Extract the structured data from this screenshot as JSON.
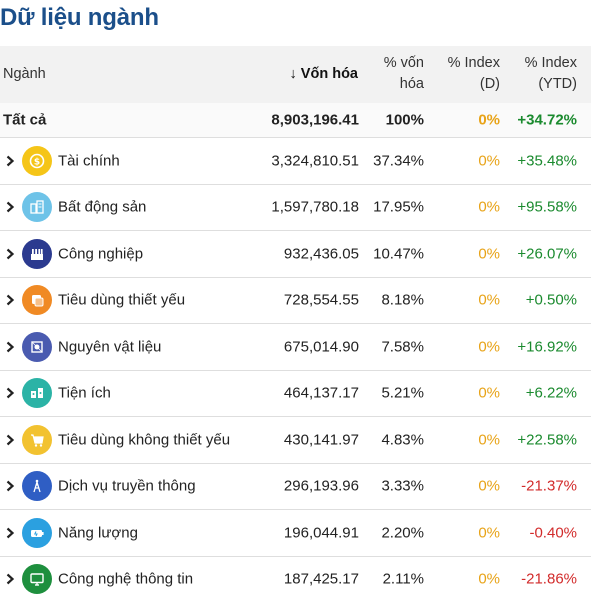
{
  "title": "Dữ liệu ngành",
  "colors": {
    "title": "#1b4f8a",
    "positive": "#1a8a2e",
    "negative": "#d22b2b",
    "neutral": "#e8a317",
    "header_bg": "#f2f2f2"
  },
  "columns": {
    "sector": "Ngành",
    "market_cap": "↓ Vốn hóa",
    "pct_cap": [
      "% vốn",
      "hóa"
    ],
    "pct_index_d": [
      "% Index",
      "(D)"
    ],
    "pct_index_ytd": [
      "% Index",
      "(YTD)"
    ]
  },
  "total": {
    "name": "Tất cả",
    "market_cap": "8,903,196.41",
    "pct_cap": "100%",
    "pct_index_d": "0%",
    "pct_index_ytd": "+34.72%"
  },
  "rows": [
    {
      "name": "Tài chính",
      "icon": "coin-icon",
      "icon_color": "#f5c518",
      "market_cap": "3,324,810.51",
      "pct_cap": "37.34%",
      "pct_index_d": "0%",
      "pct_index_ytd": "+35.48%",
      "trend": "pos"
    },
    {
      "name": "Bất động sản",
      "icon": "buildings-icon",
      "icon_color": "#6ec3e8",
      "market_cap": "1,597,780.18",
      "pct_cap": "17.95%",
      "pct_index_d": "0%",
      "pct_index_ytd": "+95.58%",
      "trend": "pos"
    },
    {
      "name": "Công nghiệp",
      "icon": "factory-icon",
      "icon_color": "#2b3a8f",
      "market_cap": "932,436.05",
      "pct_cap": "10.47%",
      "pct_index_d": "0%",
      "pct_index_ytd": "+26.07%",
      "trend": "pos"
    },
    {
      "name": "Tiêu dùng thiết yếu",
      "icon": "basket-icon",
      "icon_color": "#f08a24",
      "market_cap": "728,554.55",
      "pct_cap": "8.18%",
      "pct_index_d": "0%",
      "pct_index_ytd": "+0.50%",
      "trend": "pos"
    },
    {
      "name": "Nguyên vật liệu",
      "icon": "materials-icon",
      "icon_color": "#4a5bb0",
      "market_cap": "675,014.90",
      "pct_cap": "7.58%",
      "pct_index_d": "0%",
      "pct_index_ytd": "+16.92%",
      "trend": "pos"
    },
    {
      "name": "Tiện ích",
      "icon": "utility-icon",
      "icon_color": "#2bb3a6",
      "market_cap": "464,137.17",
      "pct_cap": "5.21%",
      "pct_index_d": "0%",
      "pct_index_ytd": "+6.22%",
      "trend": "pos"
    },
    {
      "name": "Tiêu dùng không thiết yếu",
      "icon": "cart-icon",
      "icon_color": "#f2c230",
      "market_cap": "430,141.97",
      "pct_cap": "4.83%",
      "pct_index_d": "0%",
      "pct_index_ytd": "+22.58%",
      "trend": "pos"
    },
    {
      "name": "Dịch vụ truyền thông",
      "icon": "antenna-icon",
      "icon_color": "#2f5ec4",
      "market_cap": "296,193.96",
      "pct_cap": "3.33%",
      "pct_index_d": "0%",
      "pct_index_ytd": "-21.37%",
      "trend": "neg"
    },
    {
      "name": "Năng lượng",
      "icon": "battery-icon",
      "icon_color": "#2ba0e0",
      "market_cap": "196,044.91",
      "pct_cap": "2.20%",
      "pct_index_d": "0%",
      "pct_index_ytd": "-0.40%",
      "trend": "neg"
    },
    {
      "name": "Công nghệ thông tin",
      "icon": "monitor-icon",
      "icon_color": "#1e8f3e",
      "market_cap": "187,425.17",
      "pct_cap": "2.11%",
      "pct_index_d": "0%",
      "pct_index_ytd": "-21.86%",
      "trend": "neg"
    }
  ]
}
